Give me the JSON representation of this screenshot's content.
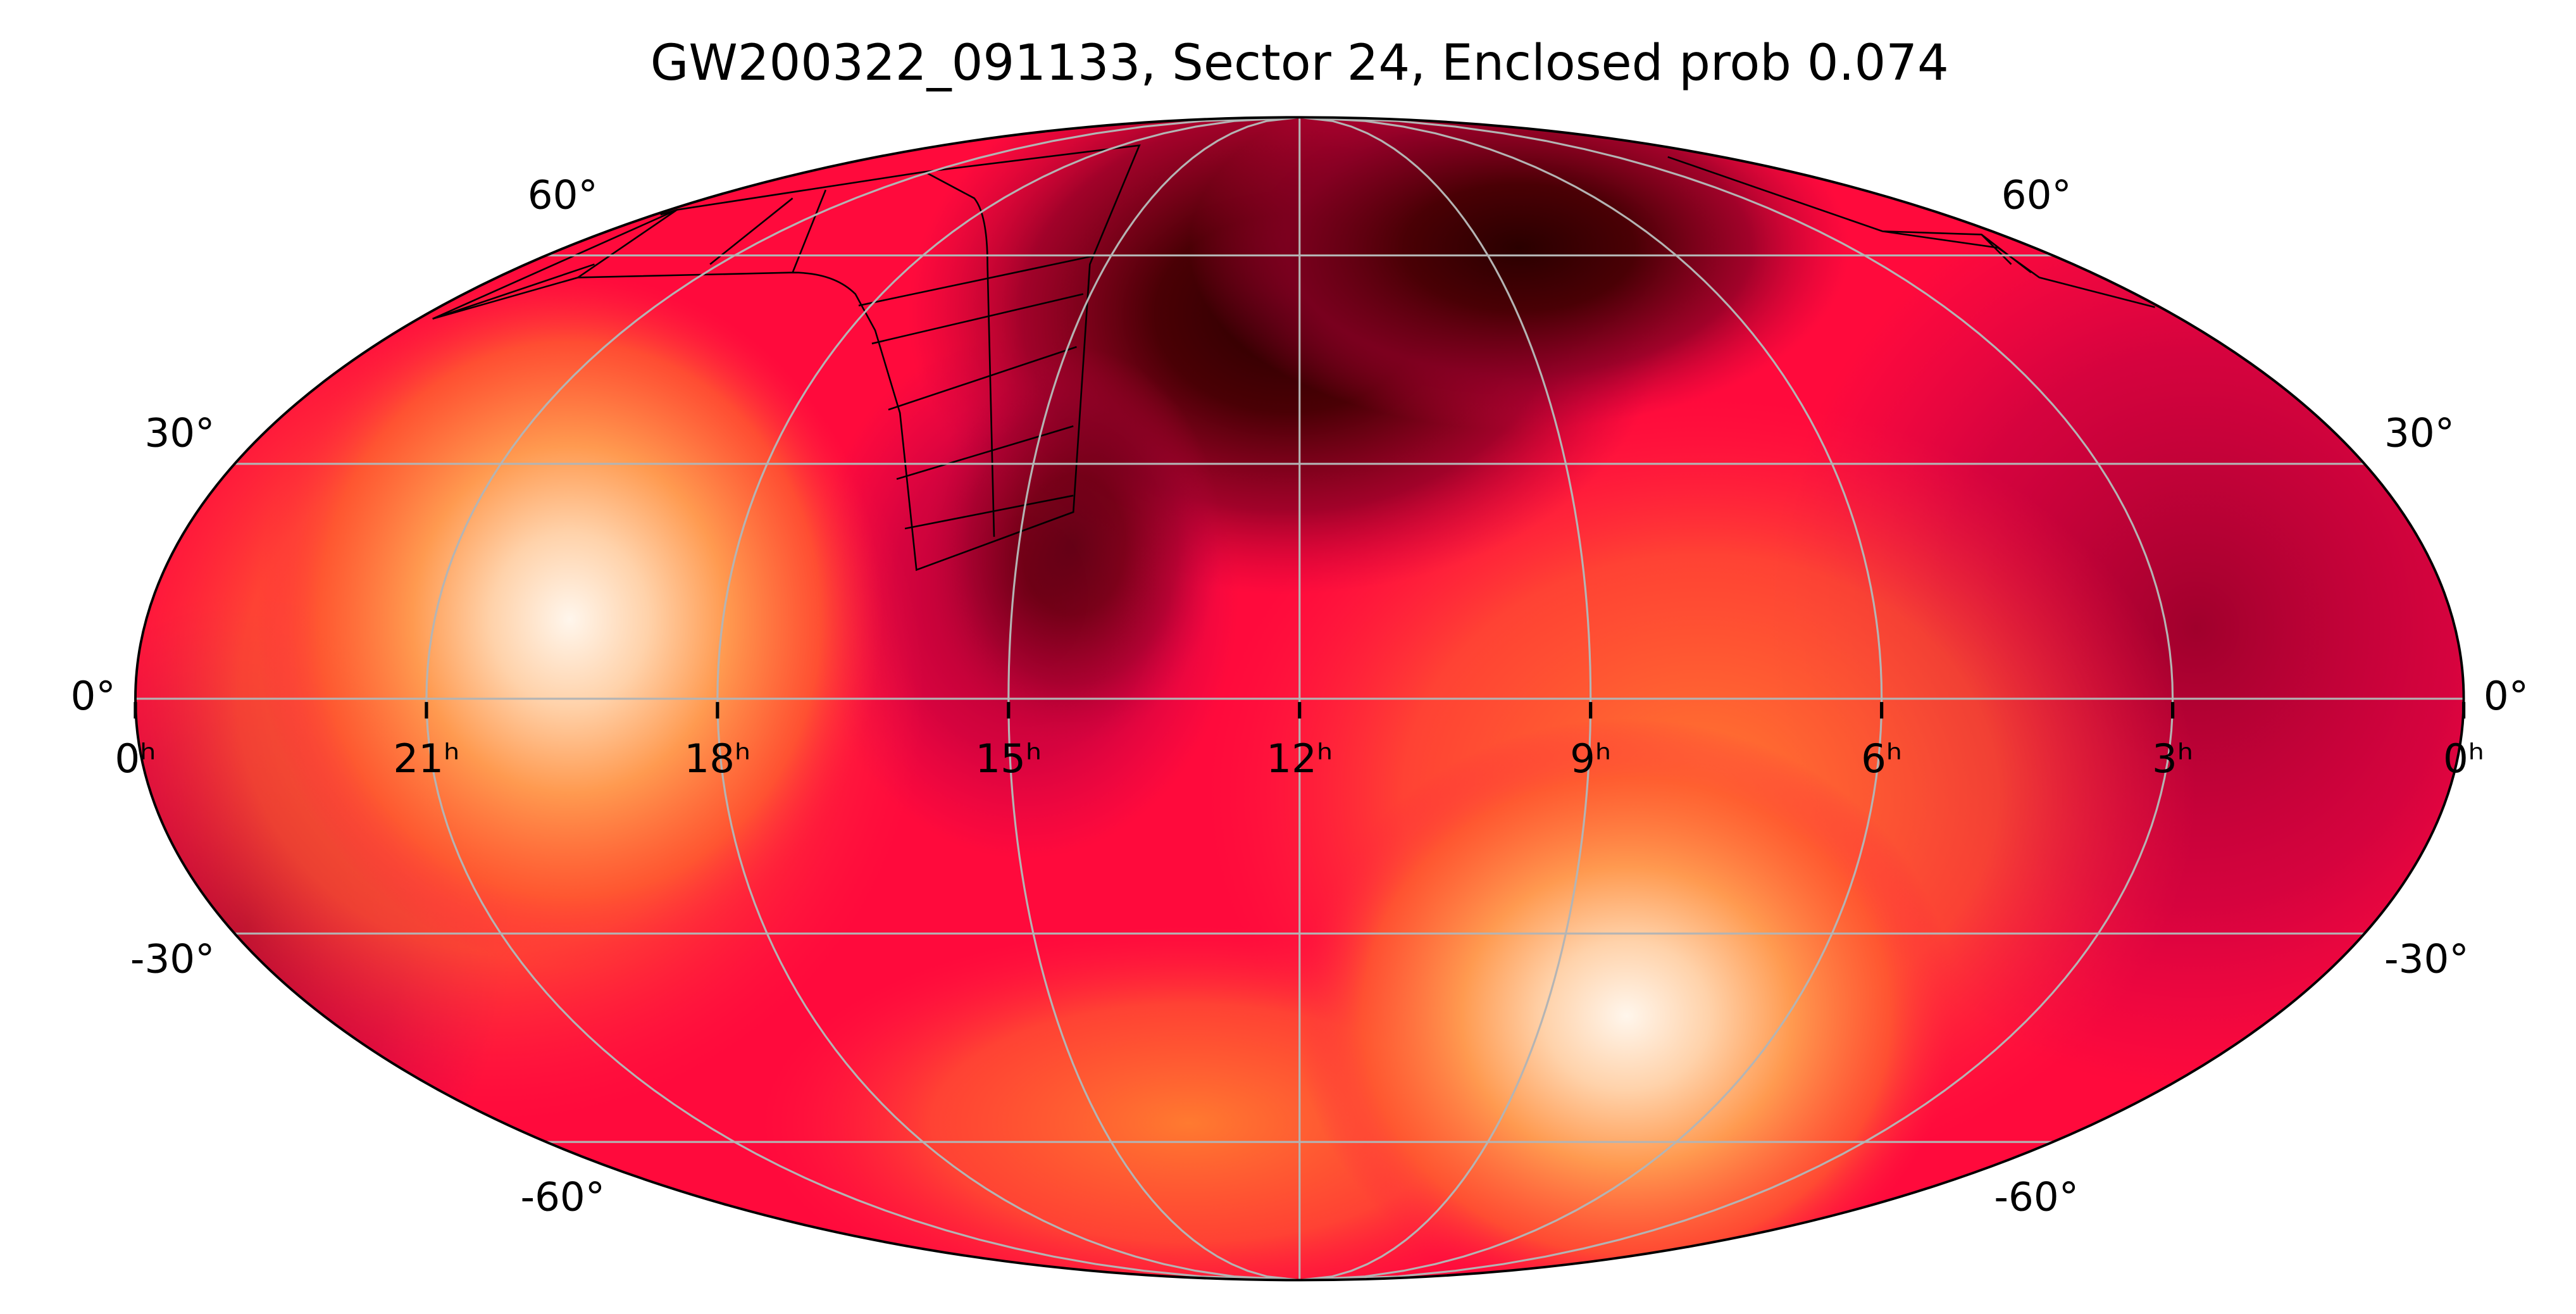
{
  "chart_data": {
    "type": "mollweide",
    "title": "GW200322_091133, Sector 24, Enclosed prob 0.074",
    "xlim": [
      24,
      0
    ],
    "ylim": [
      -90,
      90
    ],
    "xticks": [
      {
        "value": 24,
        "label": "0ʰ"
      },
      {
        "value": 21,
        "label": "21ʰ"
      },
      {
        "value": 18,
        "label": "18ʰ"
      },
      {
        "value": 15,
        "label": "15ʰ"
      },
      {
        "value": 12,
        "label": "12ʰ"
      },
      {
        "value": 9,
        "label": "9ʰ"
      },
      {
        "value": 6,
        "label": "6ʰ"
      },
      {
        "value": 3,
        "label": "3ʰ"
      },
      {
        "value": 0,
        "label": "0ʰ"
      }
    ],
    "yticks": [
      {
        "value": -60,
        "label": "-60°"
      },
      {
        "value": -30,
        "label": "-30°"
      },
      {
        "value": 0,
        "label": "0°"
      },
      {
        "value": 30,
        "label": "30°"
      },
      {
        "value": 60,
        "label": "60°"
      }
    ],
    "grid": true
  }
}
